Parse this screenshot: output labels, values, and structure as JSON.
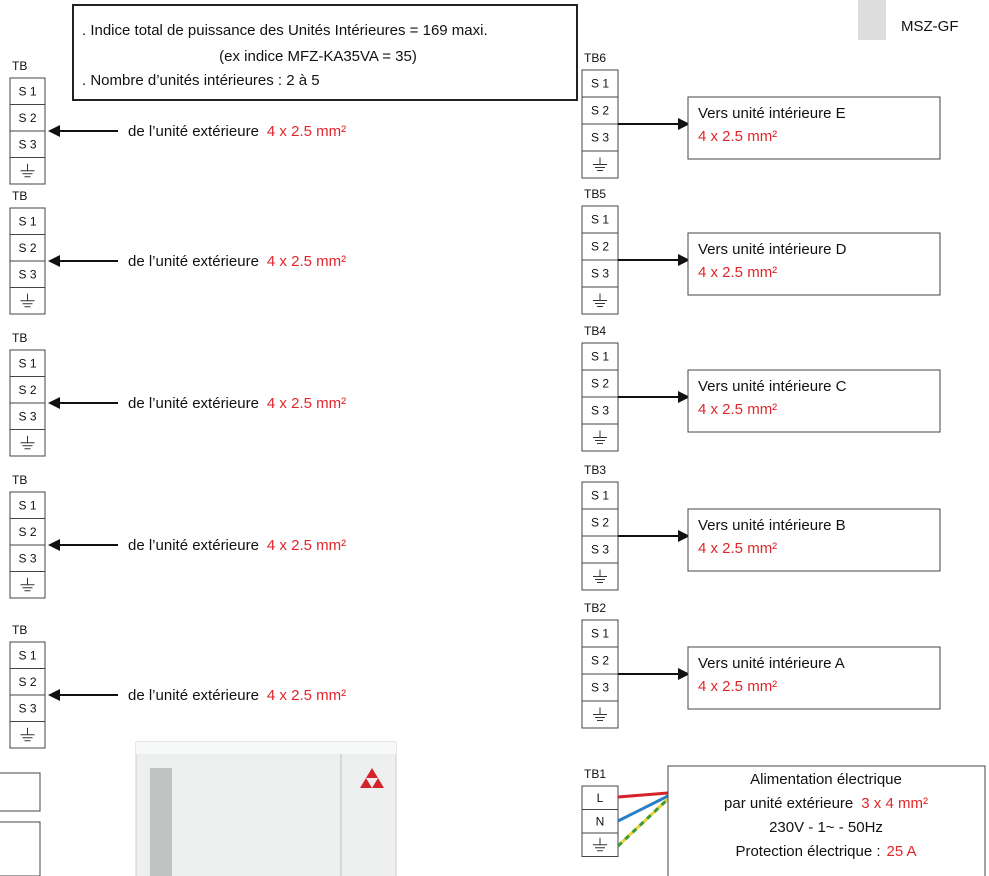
{
  "header_note": {
    "lines": [
      ". Indice total de puissance des Unités Intérieures = 169 maxi.",
      "(ex indice MFZ-KA35VA = 35)",
      ". Nombre d’unités intérieures : 2 à 5"
    ]
  },
  "model": "MSZ-GF",
  "left_blocks": [
    {
      "label": "TB",
      "terminals": [
        "S 1",
        "S 2",
        "S 3"
      ],
      "source": "de l’unité extérieure",
      "cable": "4 x 2.5 mm²"
    },
    {
      "label": "TB",
      "terminals": [
        "S 1",
        "S 2",
        "S 3"
      ],
      "source": "de l’unité extérieure",
      "cable": "4 x 2.5 mm²"
    },
    {
      "label": "TB",
      "terminals": [
        "S 1",
        "S 2",
        "S 3"
      ],
      "source": "de l’unité extérieure",
      "cable": "4 x 2.5 mm²"
    },
    {
      "label": "TB",
      "terminals": [
        "S 1",
        "S 2",
        "S 3"
      ],
      "source": "de l’unité extérieure",
      "cable": "4 x 2.5 mm²"
    },
    {
      "label": "TB",
      "terminals": [
        "S 1",
        "S 2",
        "S 3"
      ],
      "source": "de l’unité extérieure",
      "cable": "4 x 2.5 mm²"
    }
  ],
  "right_blocks": [
    {
      "label": "TB6",
      "terminals": [
        "S 1",
        "S 2",
        "S 3"
      ],
      "destination": "Vers unité intérieure E",
      "cable": "4 x 2.5 mm²"
    },
    {
      "label": "TB5",
      "terminals": [
        "S 1",
        "S 2",
        "S 3"
      ],
      "destination": "Vers unité intérieure D",
      "cable": "4 x 2.5 mm²"
    },
    {
      "label": "TB4",
      "terminals": [
        "S 1",
        "S 2",
        "S 3"
      ],
      "destination": "Vers unité intérieure C",
      "cable": "4 x 2.5 mm²"
    },
    {
      "label": "TB3",
      "terminals": [
        "S 1",
        "S 2",
        "S 3"
      ],
      "destination": "Vers unité intérieure B",
      "cable": "4 x 2.5 mm²"
    },
    {
      "label": "TB2",
      "terminals": [
        "S 1",
        "S 2",
        "S 3"
      ],
      "destination": "Vers unité intérieure A",
      "cable": "4 x 2.5 mm²"
    }
  ],
  "power_block": {
    "label": "TB1",
    "terminals": [
      "L",
      "N"
    ],
    "title": "Alimentation électrique",
    "source": "par unité extérieure",
    "cable": "3 x 4 mm²",
    "voltage": "230V - 1~ - 50Hz",
    "protection_label": "Protection électrique :",
    "protection_value": "25 A"
  }
}
